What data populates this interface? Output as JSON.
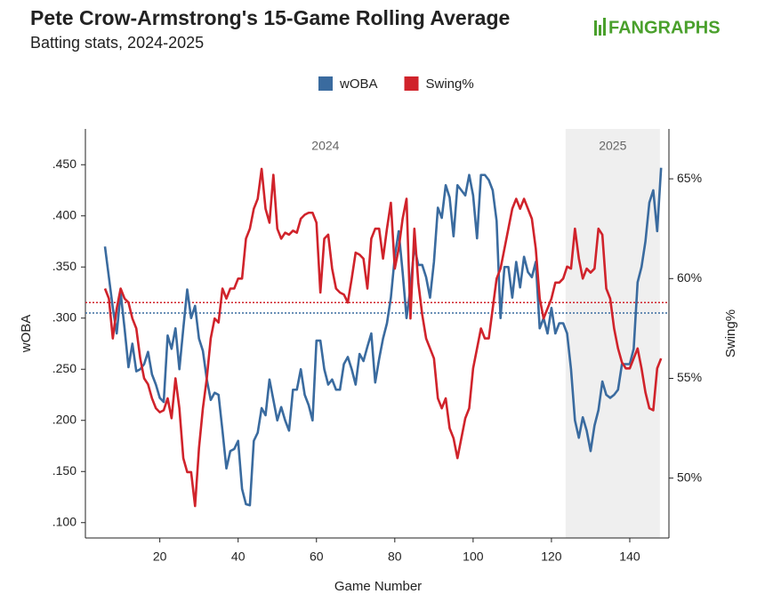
{
  "chart_data": {
    "type": "line",
    "title": "Pete Crow-Armstrong's 15-Game Rolling Average",
    "subtitle": "Batting stats, 2024-2025",
    "logo": "FANGRAPHS",
    "x_label": "Game Number",
    "y_label": "wOBA",
    "y2_label": "Swing%",
    "legend": "top",
    "xlim": [
      1,
      150
    ],
    "xticks": [
      20,
      40,
      60,
      80,
      100,
      120,
      140
    ],
    "ylim": [
      0.085,
      0.485
    ],
    "yticks": [
      {
        "value": 0.1,
        "label": ".100"
      },
      {
        "value": 0.15,
        "label": ".150"
      },
      {
        "value": 0.2,
        "label": ".200"
      },
      {
        "value": 0.25,
        "label": ".250"
      },
      {
        "value": 0.3,
        "label": ".300"
      },
      {
        "value": 0.35,
        "label": ".350"
      },
      {
        "value": 0.4,
        "label": ".400"
      },
      {
        "value": 0.45,
        "label": ".450"
      }
    ],
    "y2lim": [
      47,
      67.5
    ],
    "y2ticks": [
      {
        "value": 50,
        "label": "50%"
      },
      {
        "value": 55,
        "label": "55%"
      },
      {
        "value": 60,
        "label": "60%"
      },
      {
        "value": 65,
        "label": "65%"
      }
    ],
    "season_bands": [
      {
        "label": "2024",
        "start": 1,
        "end": 123.6,
        "shaded": false
      },
      {
        "label": "2025",
        "start": 123.6,
        "end": 147.7,
        "shaded": true
      }
    ],
    "reference_lines": [
      {
        "axis": "y",
        "value": 0.305,
        "color": "#3a6b9f"
      },
      {
        "axis": "y2",
        "value": 58.8,
        "color": "#d0232b"
      }
    ],
    "x": [
      6,
      7,
      8,
      9,
      10,
      11,
      12,
      13,
      14,
      15,
      16,
      17,
      18,
      19,
      20,
      21,
      22,
      23,
      24,
      25,
      26,
      27,
      28,
      29,
      30,
      31,
      32,
      33,
      34,
      35,
      36,
      37,
      38,
      39,
      40,
      41,
      42,
      43,
      44,
      45,
      46,
      47,
      48,
      49,
      50,
      51,
      52,
      53,
      54,
      55,
      56,
      57,
      58,
      59,
      60,
      61,
      62,
      63,
      64,
      65,
      66,
      67,
      68,
      69,
      70,
      71,
      72,
      73,
      74,
      75,
      76,
      77,
      78,
      79,
      80,
      81,
      82,
      83,
      84,
      85,
      86,
      87,
      88,
      89,
      90,
      91,
      92,
      93,
      94,
      95,
      96,
      97,
      98,
      99,
      100,
      101,
      102,
      103,
      104,
      105,
      106,
      107,
      108,
      109,
      110,
      111,
      112,
      113,
      114,
      115,
      116,
      117,
      118,
      119,
      120,
      121,
      122,
      123,
      124,
      125,
      126,
      127,
      128,
      129,
      130,
      131,
      132,
      133,
      134,
      135,
      136,
      137,
      138,
      139,
      140,
      141,
      142,
      143,
      144,
      145,
      146,
      147,
      148
    ],
    "series": [
      {
        "name": "wOBA",
        "color": "#3a6b9f",
        "axis": "y",
        "values": [
          0.37,
          0.34,
          0.31,
          0.285,
          0.325,
          0.29,
          0.252,
          0.275,
          0.248,
          0.25,
          0.255,
          0.267,
          0.245,
          0.235,
          0.222,
          0.218,
          0.283,
          0.27,
          0.29,
          0.25,
          0.29,
          0.328,
          0.3,
          0.312,
          0.28,
          0.268,
          0.24,
          0.22,
          0.227,
          0.225,
          0.19,
          0.153,
          0.17,
          0.172,
          0.18,
          0.133,
          0.118,
          0.117,
          0.18,
          0.188,
          0.212,
          0.205,
          0.24,
          0.22,
          0.2,
          0.213,
          0.2,
          0.19,
          0.23,
          0.23,
          0.25,
          0.225,
          0.215,
          0.2,
          0.278,
          0.278,
          0.25,
          0.235,
          0.24,
          0.23,
          0.23,
          0.255,
          0.262,
          0.25,
          0.235,
          0.265,
          0.258,
          0.272,
          0.285,
          0.237,
          0.26,
          0.28,
          0.295,
          0.32,
          0.36,
          0.385,
          0.345,
          0.3,
          0.33,
          0.37,
          0.352,
          0.352,
          0.34,
          0.32,
          0.355,
          0.408,
          0.398,
          0.43,
          0.418,
          0.38,
          0.43,
          0.425,
          0.42,
          0.44,
          0.42,
          0.378,
          0.44,
          0.44,
          0.435,
          0.425,
          0.395,
          0.3,
          0.35,
          0.35,
          0.32,
          0.355,
          0.33,
          0.36,
          0.345,
          0.34,
          0.355,
          0.29,
          0.3,
          0.285,
          0.31,
          0.285,
          0.295,
          0.295,
          0.285,
          0.25,
          0.2,
          0.183,
          0.203,
          0.19,
          0.17,
          0.195,
          0.21,
          0.238,
          0.225,
          0.222,
          0.225,
          0.23,
          0.255,
          0.255,
          0.255,
          0.27,
          0.335,
          0.35,
          0.375,
          0.413,
          0.425,
          0.385,
          0.447
        ]
      },
      {
        "name": "Swing%",
        "color": "#d0232b",
        "axis": "y2",
        "values": [
          59.5,
          59.0,
          57.0,
          58.5,
          59.5,
          59.0,
          58.8,
          58.0,
          57.5,
          56.0,
          55.0,
          54.7,
          54.0,
          53.5,
          53.3,
          53.4,
          54.0,
          53.0,
          55.0,
          53.5,
          51.0,
          50.3,
          50.3,
          48.6,
          51.5,
          53.5,
          55.0,
          57.0,
          58.0,
          57.8,
          59.5,
          59.0,
          59.5,
          59.5,
          60.0,
          60.0,
          62.0,
          62.5,
          63.5,
          64.0,
          65.5,
          63.5,
          62.8,
          65.2,
          62.5,
          62.0,
          62.3,
          62.2,
          62.4,
          62.3,
          63.0,
          63.2,
          63.3,
          63.3,
          62.8,
          59.3,
          62.0,
          62.2,
          60.5,
          59.5,
          59.3,
          59.2,
          58.8,
          60.0,
          61.3,
          61.2,
          61.0,
          59.5,
          62.0,
          62.5,
          62.5,
          61.0,
          62.5,
          63.8,
          60.5,
          61.5,
          63.0,
          64.0,
          58.0,
          62.5,
          59.8,
          58.2,
          57.0,
          56.5,
          56.0,
          54.0,
          53.5,
          54.0,
          52.5,
          52.0,
          51.0,
          52.0,
          53.0,
          53.5,
          55.5,
          56.5,
          57.5,
          57.0,
          57.0,
          58.5,
          60.0,
          60.5,
          61.5,
          62.5,
          63.5,
          64.0,
          63.5,
          64.0,
          63.5,
          63.0,
          61.5,
          59.0,
          58.0,
          58.5,
          59.0,
          59.8,
          59.8,
          60.0,
          60.6,
          60.5,
          62.5,
          61.0,
          60.0,
          60.5,
          60.3,
          60.5,
          62.5,
          62.2,
          59.5,
          59.0,
          57.5,
          56.5,
          55.8,
          55.5,
          55.5,
          56.0,
          56.5,
          55.5,
          54.3,
          53.5,
          53.4,
          55.5,
          56.0
        ]
      }
    ]
  }
}
